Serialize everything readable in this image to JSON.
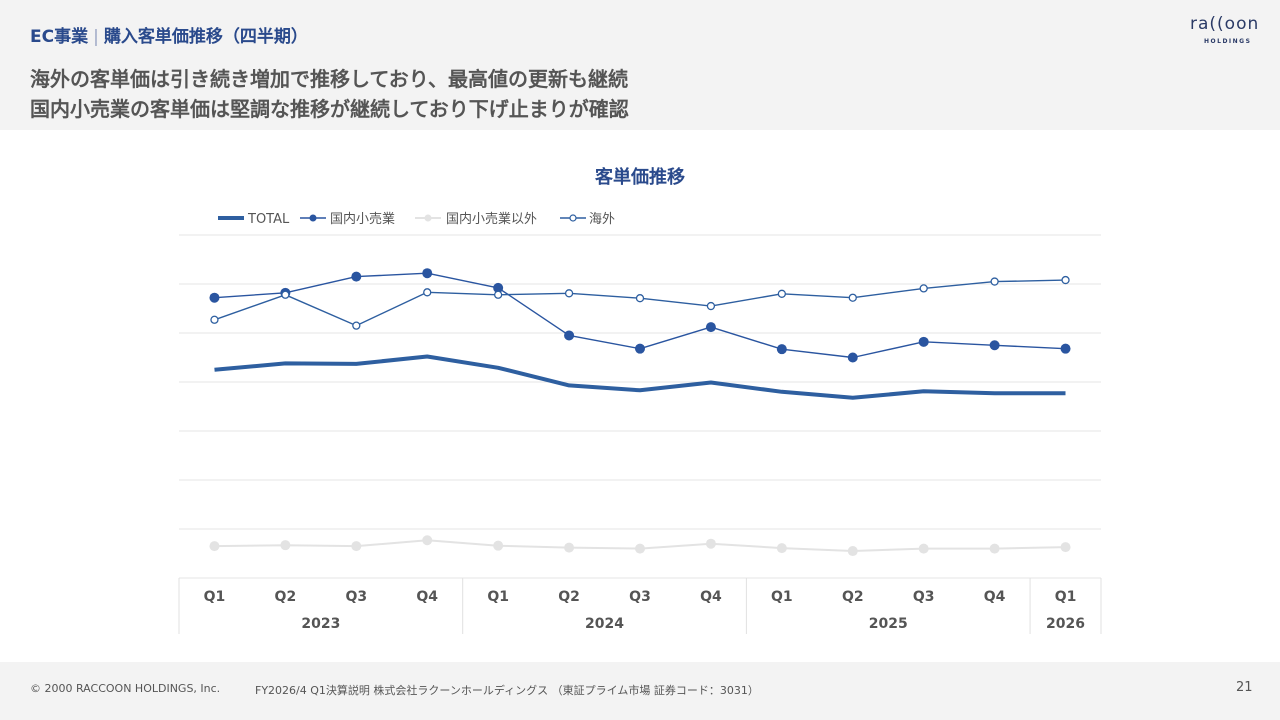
{
  "header": {
    "section": "EC事業",
    "separator": "|",
    "subtitle": "購入客単価推移（四半期）",
    "headline_line1": "海外の客単価は引き続き増加で推移しており、最高値の更新も継続",
    "headline_line2": "国内小売業の客単価は堅調な推移が継続しており下げ止まりが確認"
  },
  "logo": {
    "word": "ra((oon",
    "sub": "HOLDINGS"
  },
  "chart_data": {
    "type": "line",
    "title": "客単価推移",
    "legend_position": "top-left",
    "grid": true,
    "categories": [
      "Q1",
      "Q2",
      "Q3",
      "Q4",
      "Q1",
      "Q2",
      "Q3",
      "Q4",
      "Q1",
      "Q2",
      "Q3",
      "Q4",
      "Q1"
    ],
    "year_groups": [
      {
        "label": "2023",
        "span": 4
      },
      {
        "label": "2024",
        "span": 4
      },
      {
        "label": "2025",
        "span": 4
      },
      {
        "label": "2026",
        "span": 1
      }
    ],
    "ylim": [
      0,
      7
    ],
    "series": [
      {
        "name": "TOTAL",
        "values": [
          4.25,
          4.38,
          4.37,
          4.52,
          4.29,
          3.93,
          3.83,
          3.99,
          3.8,
          3.68,
          3.81,
          3.77,
          3.77
        ],
        "color": "#2e5fa0",
        "style": "thick"
      },
      {
        "name": "国内小売業",
        "values": [
          5.72,
          5.82,
          6.15,
          6.22,
          5.92,
          4.95,
          4.68,
          5.12,
          4.67,
          4.5,
          4.82,
          4.75,
          4.68
        ],
        "color": "#2a55a0",
        "style": "filled-marker"
      },
      {
        "name": "国内小売業以外",
        "values": [
          0.65,
          0.67,
          0.65,
          0.77,
          0.66,
          0.62,
          0.6,
          0.7,
          0.61,
          0.55,
          0.6,
          0.6,
          0.63
        ],
        "color": "#e3e3e3",
        "style": "filled-marker"
      },
      {
        "name": "海外",
        "values": [
          5.27,
          5.78,
          5.15,
          5.83,
          5.78,
          5.81,
          5.71,
          5.55,
          5.8,
          5.72,
          5.91,
          6.05,
          6.08
        ],
        "color": "#2e5fa0",
        "style": "hollow-marker"
      }
    ]
  },
  "footer": {
    "copyright": "© 2000 RACCOON HOLDINGS, Inc.",
    "doc": "FY2026/4 Q1決算説明 株式会社ラクーンホールディングス （東証プライム市場 証券コード：3031）",
    "page": "21"
  }
}
